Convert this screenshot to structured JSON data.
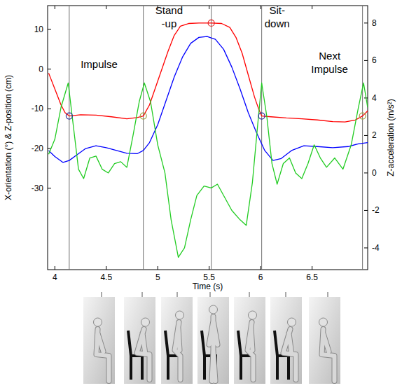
{
  "chart_data": {
    "type": "line",
    "x_label": "Time (s)",
    "y_label": "X-orientation (°) & Z-position (cm)",
    "y2_label": "Z-acceleration (m/s²)",
    "xlim": [
      3.93,
      7.04
    ],
    "ylim": [
      -50.5,
      16
    ],
    "y2lim": [
      -5.16,
      8.93
    ],
    "xticks": [
      4,
      4.5,
      5,
      5.5,
      6,
      6.5
    ],
    "yticks": [
      -30,
      -20,
      -10,
      0,
      10
    ],
    "y2ticks": [
      -4,
      -2,
      0,
      2,
      4,
      6,
      8
    ],
    "grid": false,
    "series": [
      {
        "color": "#ff0000",
        "x": [
          3.94,
          4.0,
          4.06,
          4.1,
          4.14,
          4.25,
          4.4,
          4.55,
          4.7,
          4.8,
          4.86,
          4.92,
          4.98,
          5.04,
          5.1,
          5.16,
          5.22,
          5.3,
          5.4,
          5.52,
          5.62,
          5.7,
          5.76,
          5.82,
          5.88,
          5.94,
          5.98,
          6.01,
          6.1,
          6.25,
          6.4,
          6.55,
          6.7,
          6.82,
          6.92,
          6.99,
          7.04
        ],
        "values": [
          -1,
          -5,
          -9,
          -11,
          -11.8,
          -11.5,
          -11.6,
          -12,
          -12.5,
          -12.2,
          -11.8,
          -9,
          -4.5,
          0,
          4.5,
          8.5,
          10.8,
          11.5,
          11.6,
          11.6,
          11.5,
          10.5,
          8,
          4,
          -1.5,
          -7,
          -10,
          -11.8,
          -12,
          -12.3,
          -12.5,
          -12.8,
          -13.2,
          -13.3,
          -12.8,
          -11.8,
          -10.5
        ]
      },
      {
        "color": "#0000ff",
        "x": [
          3.94,
          4.0,
          4.08,
          4.14,
          4.22,
          4.3,
          4.4,
          4.5,
          4.6,
          4.7,
          4.8,
          4.86,
          4.92,
          5.0,
          5.08,
          5.16,
          5.24,
          5.32,
          5.4,
          5.48,
          5.56,
          5.64,
          5.72,
          5.8,
          5.88,
          5.96,
          6.04,
          6.12,
          6.2,
          6.3,
          6.42,
          6.55,
          6.7,
          6.85,
          6.95,
          7.04
        ],
        "values": [
          -20.5,
          -22,
          -23.5,
          -23,
          -21.5,
          -20,
          -19.3,
          -19.8,
          -20.5,
          -21.2,
          -21.3,
          -20.5,
          -18.5,
          -14,
          -8,
          -2,
          3,
          6.5,
          8,
          8.2,
          7.5,
          5,
          0.5,
          -5,
          -11,
          -16,
          -20.5,
          -23,
          -22.5,
          -20.5,
          -19.3,
          -19.5,
          -19.8,
          -19.5,
          -18.8,
          -18.5
        ]
      },
      {
        "color": "#22cc22",
        "axis": "y2",
        "x": [
          3.94,
          4.0,
          4.06,
          4.13,
          4.18,
          4.23,
          4.28,
          4.34,
          4.4,
          4.46,
          4.52,
          4.58,
          4.64,
          4.7,
          4.76,
          4.82,
          4.87,
          4.93,
          5.0,
          5.07,
          5.13,
          5.2,
          5.26,
          5.32,
          5.38,
          5.45,
          5.52,
          5.58,
          5.65,
          5.72,
          5.8,
          5.86,
          5.92,
          5.97,
          6.01,
          6.06,
          6.11,
          6.16,
          6.22,
          6.28,
          6.34,
          6.4,
          6.46,
          6.52,
          6.58,
          6.64,
          6.72,
          6.8,
          6.88,
          6.95,
          7.0,
          7.04
        ],
        "values": [
          1.0,
          1.8,
          3.5,
          4.8,
          2.5,
          0.2,
          -0.3,
          0.8,
          0.9,
          0.2,
          0.0,
          0.5,
          0.6,
          0.3,
          2.0,
          3.8,
          4.8,
          3.8,
          1.5,
          0.0,
          -2.5,
          -4.5,
          -4.0,
          -2.5,
          -1.2,
          -0.7,
          -0.8,
          -0.6,
          -1.3,
          -2.0,
          -2.5,
          -2.8,
          -0.5,
          2.5,
          4.8,
          3.0,
          0.5,
          -0.6,
          0.5,
          0.8,
          0.0,
          -0.3,
          0.5,
          1.5,
          0.8,
          0.3,
          0.8,
          0.2,
          1.5,
          3.5,
          4.8,
          3.5
        ]
      }
    ],
    "events": {
      "x": [
        4.14,
        4.86,
        5.52,
        6.01,
        6.99
      ],
      "y": [
        -11.8,
        -11.8,
        11.6,
        -11.8,
        -11.8
      ],
      "colors": [
        "#2a2a9a",
        "#a0a040",
        "#e02020",
        "#2a2a9a",
        "#a0a040"
      ]
    },
    "annotations": [
      {
        "text": "Impulse",
        "x": 4.43,
        "y": 0.3
      },
      {
        "text": "Stand\n-up",
        "x": 5.11,
        "y": 13.9
      },
      {
        "text": "Sit-\ndown",
        "x": 6.16,
        "y": 13.9
      },
      {
        "text": "Next\nImpulse",
        "x": 6.67,
        "y": 2.4
      }
    ]
  }
}
